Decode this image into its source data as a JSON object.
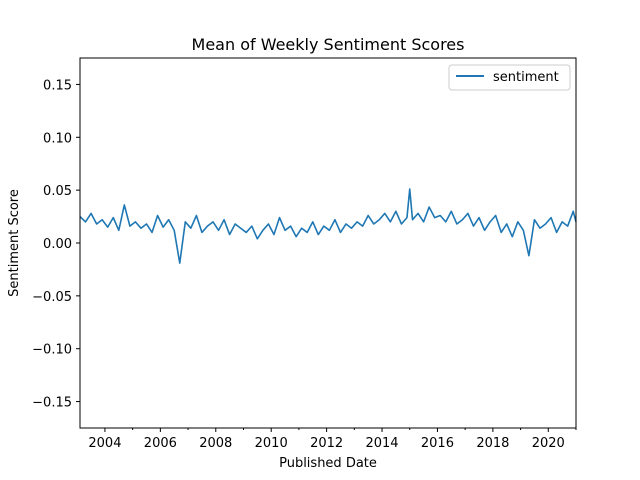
{
  "chart_data": {
    "type": "line",
    "title": "Mean of Weekly Sentiment Scores",
    "xlabel": "Published Date",
    "ylabel": "Sentiment Score",
    "xlim": [
      2003.1,
      2021.0
    ],
    "ylim": [
      -0.175,
      0.175
    ],
    "x_ticks": [
      {
        "value": 2004,
        "label": "2004"
      },
      {
        "value": 2006,
        "label": "2006"
      },
      {
        "value": 2008,
        "label": "2008"
      },
      {
        "value": 2010,
        "label": "2010"
      },
      {
        "value": 2012,
        "label": "2012"
      },
      {
        "value": 2014,
        "label": "2014"
      },
      {
        "value": 2016,
        "label": "2016"
      },
      {
        "value": 2018,
        "label": "2018"
      },
      {
        "value": 2020,
        "label": "2020"
      }
    ],
    "y_ticks": [
      {
        "value": 0.15,
        "label": "0.15"
      },
      {
        "value": 0.1,
        "label": "0.10"
      },
      {
        "value": 0.05,
        "label": "0.05"
      },
      {
        "value": 0.0,
        "label": "0.00"
      },
      {
        "value": -0.05,
        "label": "−0.05"
      },
      {
        "value": -0.1,
        "label": "−0.10"
      },
      {
        "value": -0.15,
        "label": "−0.15"
      }
    ],
    "grid": false,
    "legend_position": "top-right",
    "series": [
      {
        "name": "sentiment",
        "color": "#1f77b4",
        "x": [
          2003.1,
          2003.3,
          2003.5,
          2003.7,
          2003.9,
          2004.1,
          2004.3,
          2004.5,
          2004.7,
          2004.9,
          2005.1,
          2005.3,
          2005.5,
          2005.7,
          2005.9,
          2006.1,
          2006.3,
          2006.5,
          2006.7,
          2006.9,
          2007.1,
          2007.3,
          2007.5,
          2007.7,
          2007.9,
          2008.1,
          2008.3,
          2008.5,
          2008.7,
          2008.9,
          2009.1,
          2009.3,
          2009.5,
          2009.7,
          2009.9,
          2010.1,
          2010.3,
          2010.5,
          2010.7,
          2010.9,
          2011.1,
          2011.3,
          2011.5,
          2011.7,
          2011.9,
          2012.1,
          2012.3,
          2012.5,
          2012.7,
          2012.9,
          2013.1,
          2013.3,
          2013.5,
          2013.7,
          2013.9,
          2014.1,
          2014.3,
          2014.5,
          2014.7,
          2014.9,
          2015.0,
          2015.1,
          2015.3,
          2015.5,
          2015.7,
          2015.9,
          2016.1,
          2016.3,
          2016.5,
          2016.7,
          2016.9,
          2017.1,
          2017.3,
          2017.5,
          2017.7,
          2017.9,
          2018.1,
          2018.3,
          2018.5,
          2018.7,
          2018.9,
          2019.1,
          2019.3,
          2019.5,
          2019.7,
          2019.9,
          2020.1,
          2020.3,
          2020.5,
          2020.7,
          2020.9,
          2021.0
        ],
        "y": [
          0.025,
          0.02,
          0.028,
          0.018,
          0.022,
          0.015,
          0.024,
          0.012,
          0.036,
          0.016,
          0.02,
          0.014,
          0.018,
          0.01,
          0.026,
          0.015,
          0.022,
          0.012,
          -0.019,
          0.02,
          0.014,
          0.026,
          0.01,
          0.016,
          0.02,
          0.012,
          0.022,
          0.008,
          0.018,
          0.014,
          0.01,
          0.016,
          0.004,
          0.012,
          0.018,
          0.008,
          0.024,
          0.012,
          0.016,
          0.006,
          0.014,
          0.01,
          0.02,
          0.008,
          0.016,
          0.012,
          0.022,
          0.01,
          0.018,
          0.014,
          0.02,
          0.016,
          0.026,
          0.018,
          0.022,
          0.028,
          0.02,
          0.03,
          0.018,
          0.024,
          0.051,
          0.022,
          0.028,
          0.02,
          0.034,
          0.024,
          0.026,
          0.02,
          0.03,
          0.018,
          0.022,
          0.028,
          0.016,
          0.024,
          0.012,
          0.02,
          0.026,
          0.01,
          0.018,
          0.006,
          0.02,
          0.012,
          -0.012,
          0.022,
          0.014,
          0.018,
          0.024,
          0.01,
          0.02,
          0.016,
          0.03,
          0.02
        ]
      }
    ]
  }
}
